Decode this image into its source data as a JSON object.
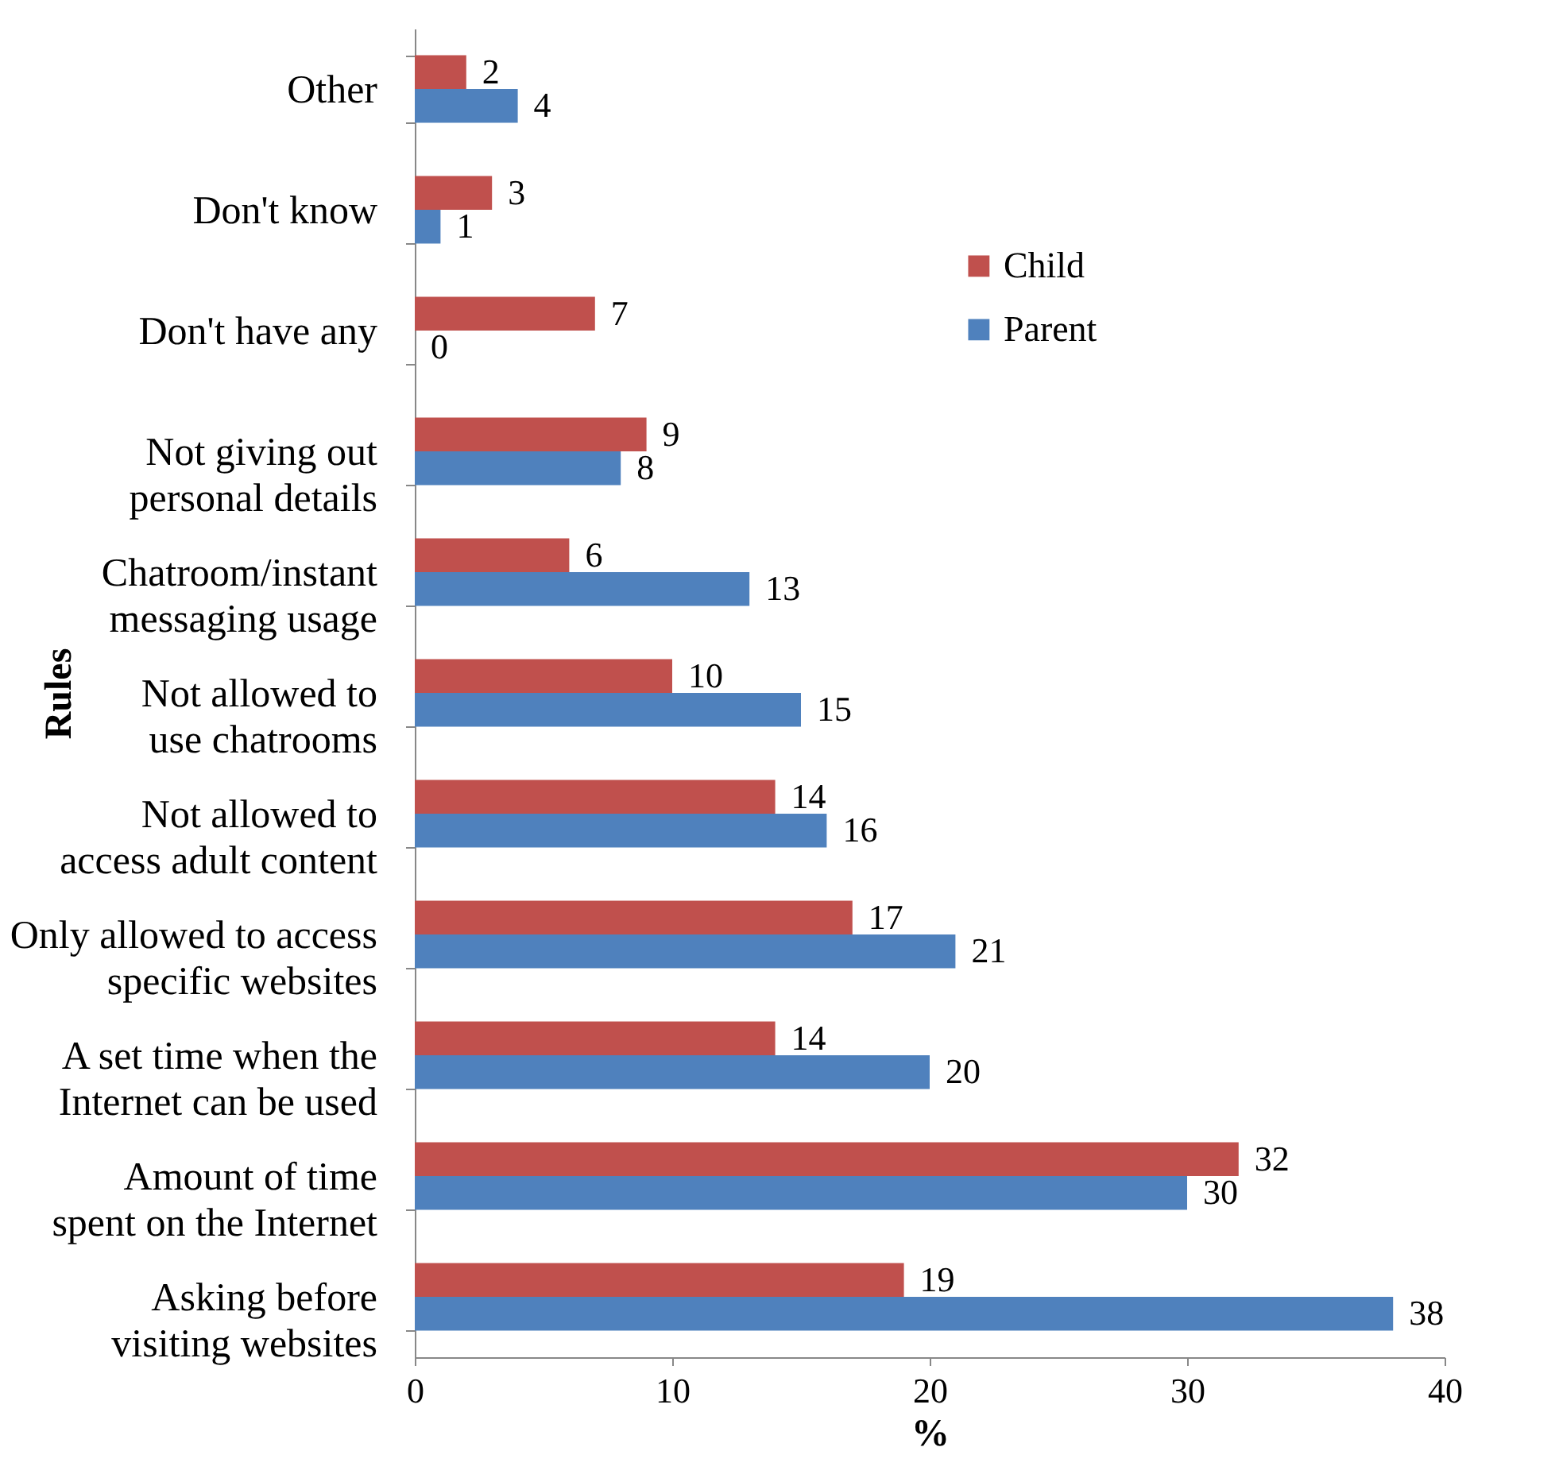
{
  "chart_data": {
    "type": "bar",
    "orientation": "horizontal",
    "xlabel": "%",
    "ylabel": "Rules",
    "categories": [
      "Other",
      "Don't know",
      "Don't have any",
      "Not giving out\npersonal details",
      "Chatroom/instant\nmessaging usage",
      "Not allowed to\nuse chatrooms",
      "Not allowed to\naccess adult content",
      "Only allowed to access\nspecific websites",
      "A set time when the\nInternet can be used",
      "Amount of time\nspent on the Internet",
      "Asking before\nvisiting websites"
    ],
    "series": [
      {
        "name": "Child",
        "color": "#c0504d",
        "values": [
          2,
          3,
          7,
          9,
          6,
          10,
          14,
          17,
          14,
          32,
          19
        ]
      },
      {
        "name": "Parent",
        "color": "#4f81bd",
        "values": [
          4,
          1,
          0,
          8,
          13,
          15,
          16,
          21,
          20,
          30,
          38
        ]
      }
    ],
    "xlim": [
      0,
      40
    ],
    "xticks": [
      0,
      10,
      20,
      30,
      40
    ],
    "data_labels": true,
    "legend": "top right",
    "grid": false
  }
}
